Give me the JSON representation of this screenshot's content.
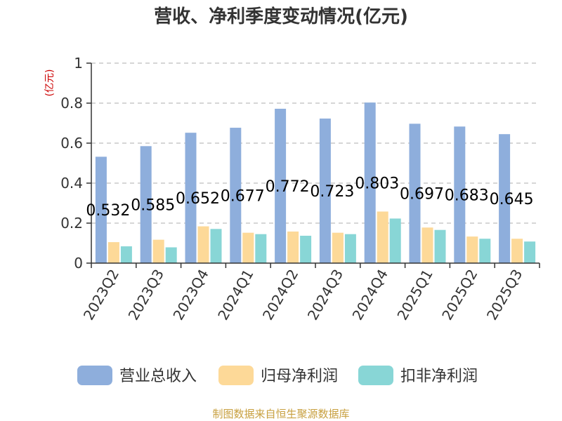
{
  "chart_data": {
    "type": "bar",
    "title": "营收、净利季度变动情况(亿元)",
    "ylabel": "(亿元)",
    "xlabel": "",
    "ylim": [
      0,
      1
    ],
    "yticks": [
      0,
      0.2,
      0.4,
      0.6,
      0.8,
      1
    ],
    "ytick_labels": [
      "0",
      "0.2",
      "0.4",
      "0.6",
      "0.8",
      "1"
    ],
    "grid": true,
    "legend_position": "bottom",
    "categories": [
      "2023Q2",
      "2023Q3",
      "2023Q4",
      "2024Q1",
      "2024Q2",
      "2024Q3",
      "2024Q4",
      "2025Q1",
      "2025Q2",
      "2025Q3"
    ],
    "series": [
      {
        "name": "营业总收入",
        "color": "#8eaedc",
        "values": [
          0.532,
          0.585,
          0.652,
          0.677,
          0.772,
          0.723,
          0.803,
          0.697,
          0.683,
          0.645
        ]
      },
      {
        "name": "归母净利润",
        "color": "#fdd998",
        "values": [
          0.105,
          0.117,
          0.184,
          0.152,
          0.158,
          0.152,
          0.258,
          0.178,
          0.133,
          0.122
        ]
      },
      {
        "name": "扣非净利润",
        "color": "#88d6d6",
        "values": [
          0.084,
          0.079,
          0.171,
          0.145,
          0.137,
          0.145,
          0.223,
          0.166,
          0.122,
          0.108
        ]
      }
    ],
    "data_labels": [
      "0.532",
      "0.585",
      "0.652",
      "0.677",
      "0.772",
      "0.723",
      "0.803",
      "0.697",
      "0.683",
      "0.645"
    ]
  },
  "footer": {
    "source": "制图数据来自恒生聚源数据库"
  }
}
